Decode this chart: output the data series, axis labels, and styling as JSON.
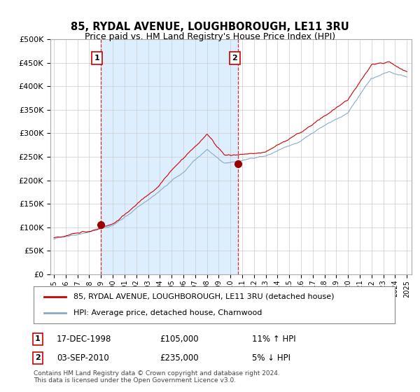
{
  "title": "85, RYDAL AVENUE, LOUGHBOROUGH, LE11 3RU",
  "subtitle": "Price paid vs. HM Land Registry's House Price Index (HPI)",
  "ylim": [
    0,
    500000
  ],
  "xlim_start": 1994.7,
  "xlim_end": 2025.4,
  "sale1_x": 1998.96,
  "sale1_y": 105000,
  "sale1_label": "1",
  "sale1_date": "17-DEC-1998",
  "sale1_price": "£105,000",
  "sale1_hpi": "11% ↑ HPI",
  "sale2_x": 2010.67,
  "sale2_y": 235000,
  "sale2_label": "2",
  "sale2_date": "03-SEP-2010",
  "sale2_price": "£235,000",
  "sale2_hpi": "5% ↓ HPI",
  "property_color": "#cc0000",
  "hpi_color": "#88aacc",
  "shade_color": "#ddeeff",
  "legend_property": "85, RYDAL AVENUE, LOUGHBOROUGH, LE11 3RU (detached house)",
  "legend_hpi": "HPI: Average price, detached house, Charnwood",
  "footer": "Contains HM Land Registry data © Crown copyright and database right 2024.\nThis data is licensed under the Open Government Licence v3.0.",
  "background_color": "#ffffff",
  "grid_color": "#cccccc"
}
